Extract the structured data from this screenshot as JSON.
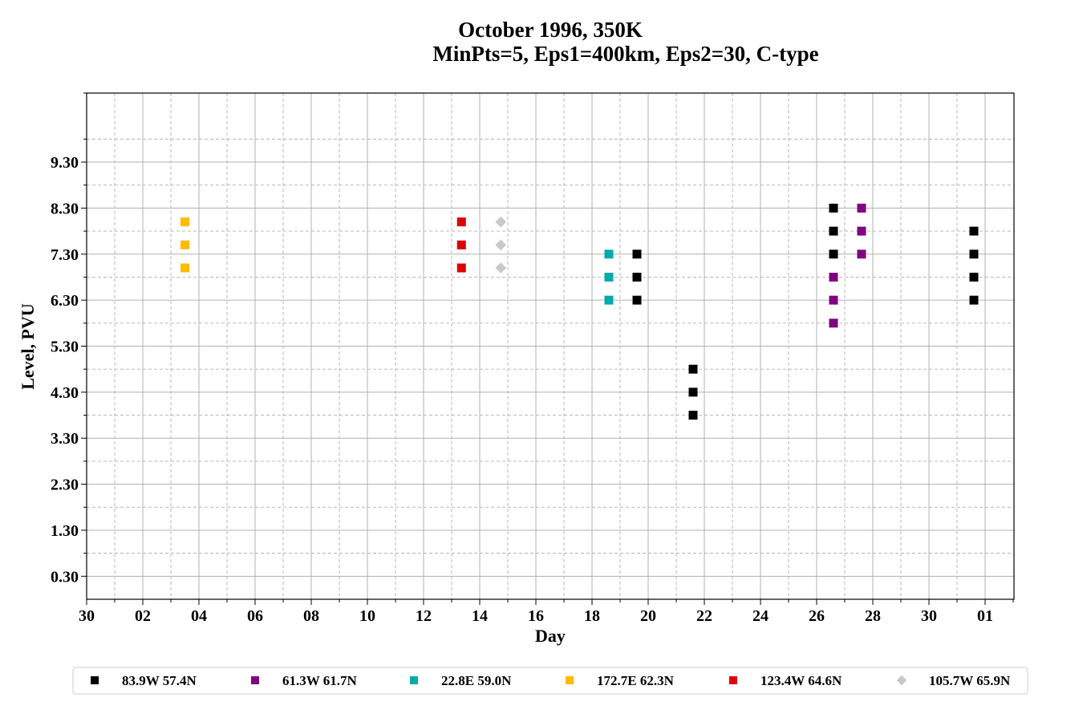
{
  "chart_data": {
    "type": "scatter",
    "title_line1": "October 1996, 350K",
    "title_line2": "MinPts=5, Eps1=400km, Eps2=30, C-type",
    "xlabel": "Day",
    "ylabel": "Level, PVU",
    "x_tick_labels": [
      "30",
      "02",
      "04",
      "06",
      "08",
      "10",
      "12",
      "14",
      "16",
      "18",
      "20",
      "22",
      "24",
      "26",
      "28",
      "30",
      "01"
    ],
    "y_tick_labels": [
      "0.30",
      "1.30",
      "2.30",
      "3.30",
      "4.30",
      "5.30",
      "6.30",
      "7.30",
      "8.30",
      "9.30"
    ],
    "ylim": [
      -0.2,
      10.8
    ],
    "grid": true,
    "legend_position": "bottom",
    "series": [
      {
        "name": "83.9W 57.4N",
        "color": "#000000",
        "marker": "square",
        "points": [
          [
            19.6,
            6.3
          ],
          [
            19.6,
            6.8
          ],
          [
            19.6,
            7.3
          ],
          [
            21.6,
            3.8
          ],
          [
            21.6,
            4.3
          ],
          [
            21.6,
            4.8
          ],
          [
            26.6,
            7.3
          ],
          [
            26.6,
            7.8
          ],
          [
            26.6,
            8.3
          ],
          [
            31.6,
            6.3
          ],
          [
            31.6,
            6.8
          ],
          [
            31.6,
            7.3
          ],
          [
            31.6,
            7.8
          ]
        ]
      },
      {
        "name": "61.3W 61.7N",
        "color": "#800080",
        "marker": "square",
        "points": [
          [
            26.6,
            5.8
          ],
          [
            26.6,
            6.3
          ],
          [
            26.6,
            6.8
          ],
          [
            27.6,
            7.3
          ],
          [
            27.6,
            7.8
          ],
          [
            27.6,
            8.3
          ]
        ]
      },
      {
        "name": "22.8E 59.0N",
        "color": "#00AAAA",
        "marker": "square",
        "points": [
          [
            18.6,
            6.3
          ],
          [
            18.6,
            6.8
          ],
          [
            18.6,
            7.3
          ]
        ]
      },
      {
        "name": "172.7E 62.3N",
        "color": "#FFBB00",
        "marker": "square",
        "points": [
          [
            3.5,
            7.0
          ],
          [
            3.5,
            7.5
          ],
          [
            3.5,
            8.0
          ]
        ]
      },
      {
        "name": "123.4W 64.6N",
        "color": "#DD0000",
        "marker": "square",
        "points": [
          [
            13.35,
            7.0
          ],
          [
            13.35,
            7.5
          ],
          [
            13.35,
            8.0
          ]
        ]
      },
      {
        "name": "105.7W 65.9N",
        "color": "#C8C8C8",
        "marker": "diamond",
        "points": [
          [
            14.75,
            7.0
          ],
          [
            14.75,
            7.5
          ],
          [
            14.75,
            8.0
          ]
        ]
      }
    ]
  }
}
